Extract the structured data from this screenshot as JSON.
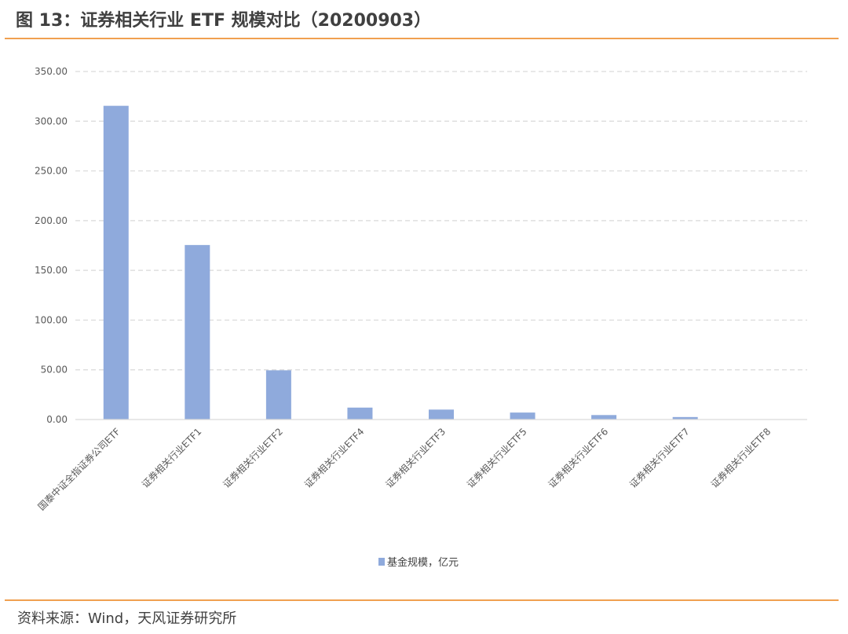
{
  "figure": {
    "title": "图 13：证券相关行业 ETF 规模对比（20200903）",
    "source": "资料来源：Wind，天风证券研究所",
    "accent_color": "#f0a050"
  },
  "chart_data": {
    "type": "bar",
    "categories": [
      "国泰中证全指证券公司ETF",
      "证券相关行业ETF1",
      "证券相关行业ETF2",
      "证券相关行业ETF4",
      "证券相关行业ETF3",
      "证券相关行业ETF5",
      "证券相关行业ETF6",
      "证券相关行业ETF7",
      "证券相关行业ETF8"
    ],
    "series": [
      {
        "name": "基金规模，亿元",
        "values": [
          315.5,
          175.5,
          49.5,
          12.0,
          10.0,
          7.0,
          4.5,
          2.5,
          0.3
        ],
        "color": "#8faadc"
      }
    ],
    "y_ticks": [
      "0.00",
      "50.00",
      "100.00",
      "150.00",
      "200.00",
      "250.00",
      "300.00",
      "350.00"
    ],
    "ylim": [
      0,
      350
    ],
    "grid": true,
    "legend_position": "bottom"
  }
}
